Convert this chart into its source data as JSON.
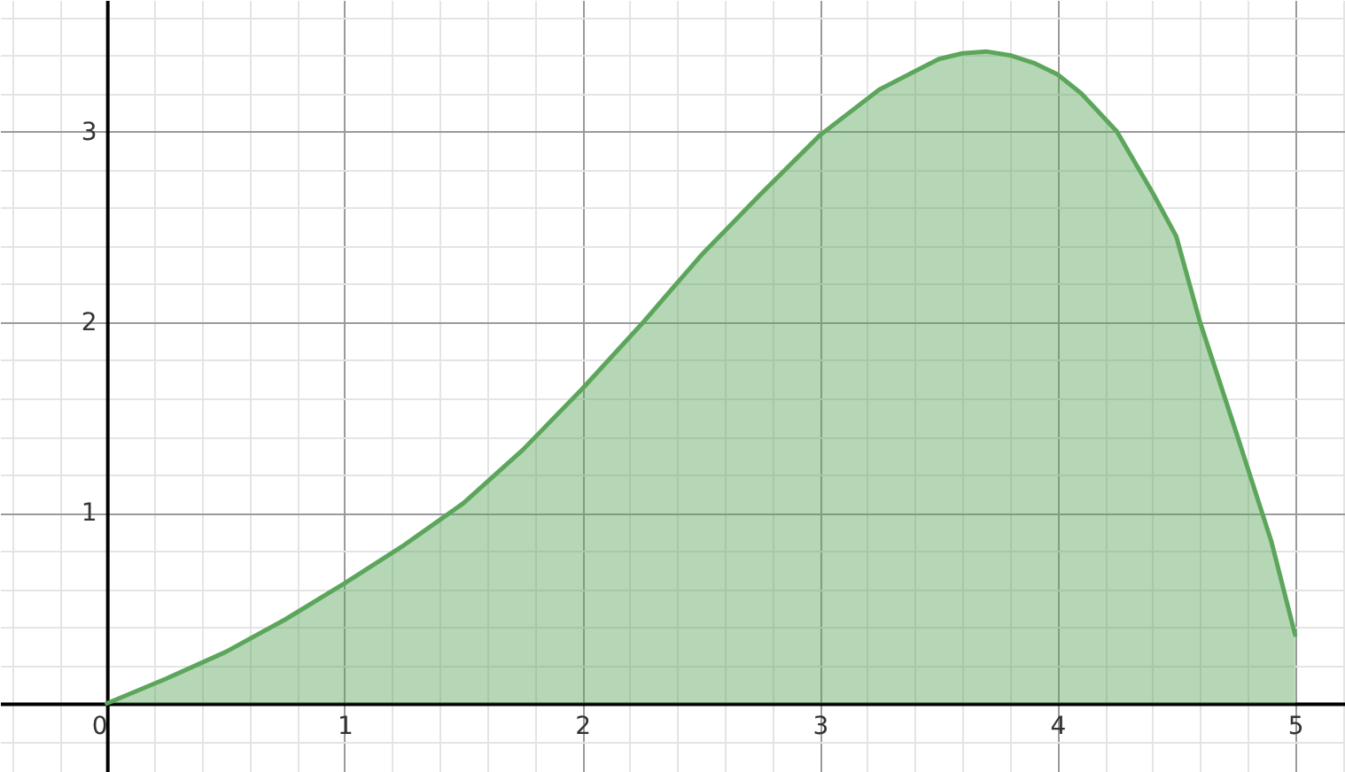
{
  "chart_data": {
    "type": "area",
    "x": [
      0,
      0.25,
      0.5,
      0.75,
      1,
      1.25,
      1.5,
      1.75,
      2,
      2.25,
      2.5,
      2.75,
      3,
      3.25,
      3.5,
      3.6,
      3.7,
      3.8,
      3.9,
      4,
      4.1,
      4.25,
      4.4,
      4.5,
      4.6,
      4.75,
      4.9,
      5
    ],
    "series": [
      {
        "color": "#5ca65c",
        "values": [
          0,
          0.13,
          0.27,
          0.44,
          0.63,
          0.83,
          1.05,
          1.33,
          1.65,
          1.99,
          2.35,
          2.67,
          2.98,
          3.22,
          3.38,
          3.41,
          3.42,
          3.4,
          3.36,
          3.3,
          3.2,
          3.0,
          2.68,
          2.45,
          2.0,
          1.43,
          0.85,
          0.36
        ]
      }
    ],
    "xlim": [
      -0.45,
      5.21
    ],
    "ylim": [
      -0.36,
      3.69
    ],
    "xticks": [
      0,
      {
        "value": 0.2,
        "label": null
      },
      {
        "value": 0.4,
        "label": null
      },
      {
        "value": 0.6,
        "label": null
      },
      {
        "value": 0.8,
        "label": null
      },
      1,
      {
        "value": 1.2,
        "label": null
      },
      {
        "value": 1.4,
        "label": null
      },
      {
        "value": 1.6,
        "label": null
      },
      {
        "value": 1.8,
        "label": null
      },
      2,
      {
        "value": 2.2,
        "label": null
      },
      {
        "value": 2.4,
        "label": null
      },
      {
        "value": 2.6,
        "label": null
      },
      {
        "value": 2.8,
        "label": null
      },
      3,
      {
        "value": 3.2,
        "label": null
      },
      {
        "value": 3.4,
        "label": null
      },
      {
        "value": 3.6,
        "label": null
      },
      {
        "value": 3.8,
        "label": null
      },
      4,
      {
        "value": 4.2,
        "label": null
      },
      {
        "value": 4.4,
        "label": null
      },
      {
        "value": 4.6,
        "label": null
      },
      {
        "value": 4.8,
        "label": null
      },
      5,
      {
        "value": -0.2,
        "label": null
      },
      {
        "value": -0.4,
        "label": null
      },
      {
        "value": 5.2,
        "label": null
      }
    ],
    "yticks": [
      {
        "value": 0,
        "label": null
      },
      {
        "value": 0.2,
        "label": null
      },
      {
        "value": 0.4,
        "label": null
      },
      {
        "value": 0.6,
        "label": null
      },
      {
        "value": 0.8,
        "label": null
      },
      1,
      {
        "value": 1.2,
        "label": null
      },
      {
        "value": 1.4,
        "label": null
      },
      {
        "value": 1.6,
        "label": null
      },
      {
        "value": 1.8,
        "label": null
      },
      2,
      {
        "value": 2.2,
        "label": null
      },
      {
        "value": 2.4,
        "label": null
      },
      {
        "value": 2.6,
        "label": null
      },
      {
        "value": 2.8,
        "label": null
      },
      3,
      {
        "value": 3.2,
        "label": null
      },
      {
        "value": 3.4,
        "label": null
      },
      {
        "value": 3.6,
        "label": null
      },
      {
        "value": -0.2,
        "label": null
      }
    ],
    "grid": true
  }
}
